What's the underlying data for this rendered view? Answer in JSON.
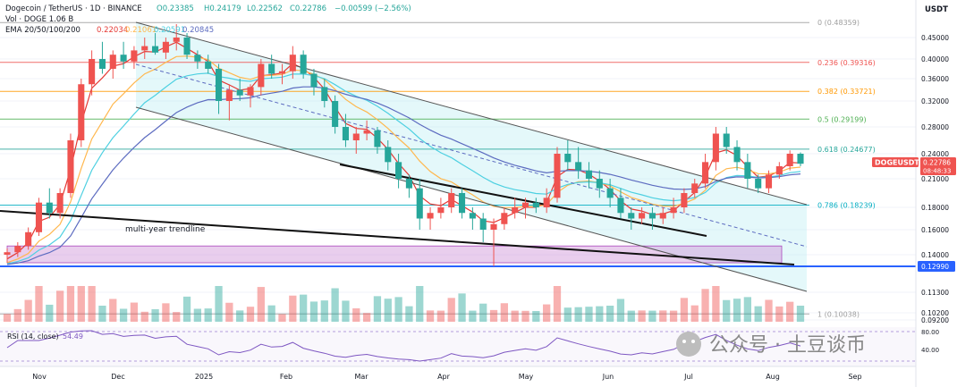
{
  "header": {
    "title": "Dogecoin / TetherUS · 1D · BINANCE",
    "open": "O0.23385",
    "high": "H0.24179",
    "low": "L0.22562",
    "close": "C0.22786",
    "change": "−0.00599 (−2.56%)",
    "volume": "Vol · DOGE  1.06 B",
    "ema_label": "EMA 20/50/100/200",
    "ema_values": [
      "0.22034",
      "0.21061",
      "0.20591",
      "0.20845"
    ]
  },
  "currency": "USDT",
  "symbol_tag": "DOGEUSDT",
  "last_price": "0.22786",
  "countdown": "08:48:33",
  "annotation": "multi-year trendline",
  "rsi_label": "RSI (14, close)",
  "rsi_value": "54.49",
  "watermark": "公众号 · 土豆谈币",
  "colors": {
    "up": "#ef5350",
    "down": "#26a69a",
    "ema20": "#e53935",
    "ema50": "#ffb74d",
    "ema100": "#4dd0e1",
    "ema200": "#5c6bc0",
    "support": "#2962ff",
    "zone": "#ce93d8",
    "channel": "#b2ebf2"
  },
  "chart_data": {
    "type": "candlestick",
    "title": "Dogecoin / TetherUS · 1D · BINANCE",
    "y_axis_ticks": [
      "0.45000",
      "0.40000",
      "0.36000",
      "0.32000",
      "0.28000",
      "0.24000",
      "0.21000",
      "0.18000",
      "0.16000",
      "0.14000",
      "0.12990",
      "0.11300",
      "0.10200",
      "0.09200"
    ],
    "ylim": [
      0.092,
      0.49
    ],
    "x_axis_ticks": [
      "Nov",
      "Dec",
      "2025",
      "Feb",
      "Mar",
      "Apr",
      "May",
      "Jun",
      "Jul",
      "Aug",
      "Sep"
    ],
    "fib_levels": [
      {
        "label": "0 (0.48359)",
        "value": 0.48359,
        "color": "#9e9e9e"
      },
      {
        "label": "0.236 (0.39316)",
        "value": 0.39316,
        "color": "#ef5350"
      },
      {
        "label": "0.382 (0.33721)",
        "value": 0.33721,
        "color": "#ff9800"
      },
      {
        "label": "0.5 (0.29199)",
        "value": 0.29199,
        "color": "#4caf50"
      },
      {
        "label": "0.618 (0.24677)",
        "value": 0.24677,
        "color": "#26a69a"
      },
      {
        "label": "0.786 (0.18239)",
        "value": 0.18239,
        "color": "#00acc1"
      },
      {
        "label": "1 (0.10038)",
        "value": 0.10038,
        "color": "#9e9e9e"
      }
    ],
    "support_level": {
      "label": "0.12990",
      "value": 0.1299
    },
    "candles": [
      [
        0.14,
        0.145,
        0.133,
        0.142
      ],
      [
        0.142,
        0.15,
        0.138,
        0.147
      ],
      [
        0.147,
        0.162,
        0.144,
        0.158
      ],
      [
        0.158,
        0.19,
        0.155,
        0.185
      ],
      [
        0.185,
        0.2,
        0.17,
        0.175
      ],
      [
        0.175,
        0.2,
        0.17,
        0.195
      ],
      [
        0.195,
        0.27,
        0.19,
        0.26
      ],
      [
        0.26,
        0.36,
        0.25,
        0.35
      ],
      [
        0.35,
        0.42,
        0.33,
        0.4
      ],
      [
        0.4,
        0.44,
        0.37,
        0.38
      ],
      [
        0.38,
        0.42,
        0.36,
        0.41
      ],
      [
        0.41,
        0.44,
        0.38,
        0.395
      ],
      [
        0.395,
        0.43,
        0.38,
        0.42
      ],
      [
        0.42,
        0.45,
        0.4,
        0.43
      ],
      [
        0.43,
        0.46,
        0.41,
        0.415
      ],
      [
        0.415,
        0.45,
        0.4,
        0.44
      ],
      [
        0.44,
        0.48,
        0.42,
        0.45
      ],
      [
        0.45,
        0.46,
        0.4,
        0.41
      ],
      [
        0.41,
        0.42,
        0.38,
        0.395
      ],
      [
        0.395,
        0.41,
        0.37,
        0.38
      ],
      [
        0.38,
        0.39,
        0.3,
        0.32
      ],
      [
        0.32,
        0.35,
        0.29,
        0.34
      ],
      [
        0.34,
        0.36,
        0.32,
        0.33
      ],
      [
        0.33,
        0.35,
        0.31,
        0.345
      ],
      [
        0.345,
        0.4,
        0.33,
        0.39
      ],
      [
        0.39,
        0.41,
        0.36,
        0.37
      ],
      [
        0.37,
        0.39,
        0.35,
        0.375
      ],
      [
        0.375,
        0.43,
        0.36,
        0.41
      ],
      [
        0.41,
        0.42,
        0.36,
        0.37
      ],
      [
        0.37,
        0.38,
        0.33,
        0.345
      ],
      [
        0.345,
        0.36,
        0.31,
        0.32
      ],
      [
        0.32,
        0.33,
        0.27,
        0.28
      ],
      [
        0.28,
        0.3,
        0.25,
        0.26
      ],
      [
        0.26,
        0.28,
        0.24,
        0.27
      ],
      [
        0.27,
        0.29,
        0.26,
        0.275
      ],
      [
        0.275,
        0.28,
        0.24,
        0.25
      ],
      [
        0.25,
        0.26,
        0.22,
        0.23
      ],
      [
        0.23,
        0.24,
        0.2,
        0.21
      ],
      [
        0.21,
        0.215,
        0.19,
        0.2
      ],
      [
        0.2,
        0.21,
        0.16,
        0.17
      ],
      [
        0.17,
        0.18,
        0.16,
        0.175
      ],
      [
        0.175,
        0.19,
        0.17,
        0.18
      ],
      [
        0.18,
        0.2,
        0.175,
        0.195
      ],
      [
        0.195,
        0.2,
        0.17,
        0.175
      ],
      [
        0.175,
        0.18,
        0.16,
        0.17
      ],
      [
        0.17,
        0.175,
        0.15,
        0.16
      ],
      [
        0.16,
        0.17,
        0.13,
        0.165
      ],
      [
        0.165,
        0.18,
        0.16,
        0.175
      ],
      [
        0.175,
        0.19,
        0.17,
        0.18
      ],
      [
        0.18,
        0.19,
        0.17,
        0.185
      ],
      [
        0.185,
        0.19,
        0.175,
        0.18
      ],
      [
        0.18,
        0.2,
        0.175,
        0.19
      ],
      [
        0.19,
        0.25,
        0.185,
        0.24
      ],
      [
        0.24,
        0.26,
        0.22,
        0.23
      ],
      [
        0.23,
        0.25,
        0.21,
        0.22
      ],
      [
        0.22,
        0.23,
        0.2,
        0.21
      ],
      [
        0.21,
        0.22,
        0.19,
        0.2
      ],
      [
        0.2,
        0.21,
        0.18,
        0.19
      ],
      [
        0.19,
        0.2,
        0.17,
        0.175
      ],
      [
        0.175,
        0.18,
        0.16,
        0.17
      ],
      [
        0.17,
        0.18,
        0.165,
        0.175
      ],
      [
        0.175,
        0.18,
        0.16,
        0.17
      ],
      [
        0.17,
        0.18,
        0.165,
        0.175
      ],
      [
        0.175,
        0.19,
        0.17,
        0.18
      ],
      [
        0.18,
        0.2,
        0.175,
        0.195
      ],
      [
        0.195,
        0.21,
        0.19,
        0.205
      ],
      [
        0.205,
        0.24,
        0.2,
        0.23
      ],
      [
        0.23,
        0.28,
        0.22,
        0.27
      ],
      [
        0.27,
        0.28,
        0.24,
        0.25
      ],
      [
        0.25,
        0.26,
        0.22,
        0.23
      ],
      [
        0.23,
        0.24,
        0.2,
        0.21
      ],
      [
        0.21,
        0.215,
        0.195,
        0.2
      ],
      [
        0.2,
        0.22,
        0.195,
        0.215
      ],
      [
        0.215,
        0.23,
        0.21,
        0.225
      ],
      [
        0.225,
        0.245,
        0.22,
        0.24
      ],
      [
        0.24,
        0.242,
        0.225,
        0.228
      ]
    ]
  }
}
